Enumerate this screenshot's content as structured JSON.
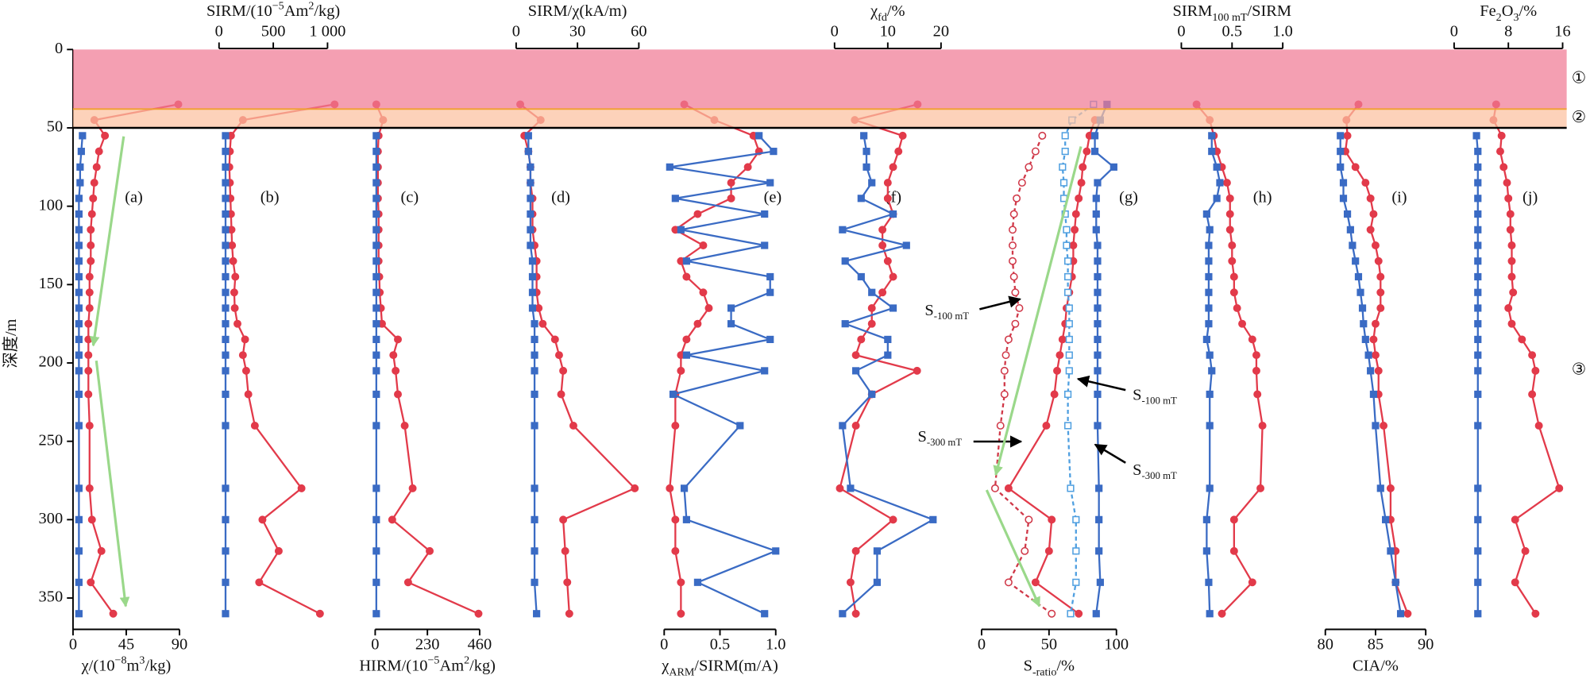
{
  "depth_axis": {
    "label": "深度/m",
    "ylim": [
      0,
      370
    ],
    "yticks": [
      0,
      50,
      100,
      150,
      200,
      250,
      300,
      350
    ],
    "depths": [
      35,
      45,
      55,
      65,
      75,
      85,
      95,
      105,
      115,
      125,
      135,
      145,
      155,
      165,
      175,
      185,
      195,
      205,
      220,
      240,
      280,
      300,
      320,
      340,
      360
    ]
  },
  "zones": [
    {
      "label": "①",
      "range": [
        0,
        38
      ],
      "color": "#f07a94"
    },
    {
      "label": "②",
      "range": [
        38,
        50
      ],
      "color": "#fcc0a0"
    },
    {
      "label": "③",
      "range": [
        50,
        360
      ],
      "color": "none"
    }
  ],
  "chart_data": [
    {
      "type": "line",
      "panel": "(a)",
      "axis": "bottom",
      "xlabel": [
        {
          "text": "χ/(10"
        },
        {
          "text": "−8",
          "style": "sup"
        },
        {
          "text": "m"
        },
        {
          "text": "3",
          "style": "sup"
        },
        {
          "text": "/kg)"
        }
      ],
      "xlim": [
        0,
        90
      ],
      "xticks": [
        0,
        45,
        90
      ],
      "series": [
        {
          "color": "#e23a4a",
          "marker": "circle",
          "values": [
            89,
            18,
            27,
            22,
            20,
            18,
            17,
            16,
            15,
            15,
            15,
            14,
            14,
            14,
            13,
            13,
            13,
            13,
            13,
            14,
            14,
            16,
            24,
            15,
            34
          ]
        },
        {
          "color": "#3a6bc4",
          "marker": "square",
          "values": [
            null,
            null,
            8,
            7,
            6,
            6,
            5,
            5,
            5,
            5,
            5,
            5,
            5,
            5,
            5,
            5,
            5,
            5,
            5,
            5,
            5,
            5,
            5,
            5,
            5
          ]
        }
      ]
    },
    {
      "type": "line",
      "panel": "(b)",
      "axis": "top",
      "xlabel": [
        {
          "text": "SIRM/(10"
        },
        {
          "text": "−5",
          "style": "sup"
        },
        {
          "text": "Am"
        },
        {
          "text": "2",
          "style": "sup"
        },
        {
          "text": "/kg)"
        }
      ],
      "xlim": [
        0,
        1000
      ],
      "xticks": [
        0,
        500,
        {
          "value": 1000,
          "label": "1 000"
        }
      ],
      "series": [
        {
          "color": "#e23a4a",
          "marker": "circle",
          "values": [
            1065,
            220,
            110,
            100,
            95,
            100,
            105,
            110,
            115,
            120,
            130,
            150,
            140,
            145,
            170,
            240,
            220,
            250,
            270,
            330,
            760,
            400,
            550,
            370,
            930
          ]
        },
        {
          "color": "#3a6bc4",
          "marker": "square",
          "values": [
            null,
            null,
            60,
            60,
            60,
            60,
            60,
            60,
            60,
            60,
            60,
            60,
            60,
            60,
            60,
            60,
            60,
            60,
            60,
            60,
            60,
            60,
            60,
            60,
            60
          ]
        }
      ]
    },
    {
      "type": "line",
      "panel": "(c)",
      "axis": "bottom",
      "xlabel": [
        {
          "text": "HIRM/(10"
        },
        {
          "text": "−5",
          "style": "sup"
        },
        {
          "text": "Am"
        },
        {
          "text": "2",
          "style": "sup"
        },
        {
          "text": "/kg)"
        }
      ],
      "xlim": [
        0,
        460
      ],
      "xticks": [
        0,
        230,
        460
      ],
      "series": [
        {
          "color": "#e23a4a",
          "marker": "circle",
          "values": [
            5,
            35,
            15,
            12,
            12,
            12,
            12,
            15,
            15,
            15,
            15,
            18,
            20,
            25,
            30,
            100,
            80,
            90,
            100,
            130,
            165,
            75,
            240,
            145,
            455
          ]
        },
        {
          "color": "#3a6bc4",
          "marker": "square",
          "values": [
            null,
            null,
            5,
            5,
            5,
            5,
            5,
            5,
            5,
            5,
            5,
            5,
            5,
            5,
            5,
            5,
            5,
            5,
            5,
            5,
            5,
            5,
            5,
            5,
            5
          ]
        }
      ]
    },
    {
      "type": "line",
      "panel": "(d)",
      "axis": "top",
      "xlabel": [
        {
          "text": "SIRM/χ(kA/m)"
        }
      ],
      "xlim": [
        0,
        60
      ],
      "xticks": [
        0,
        30,
        60
      ],
      "series": [
        {
          "color": "#e23a4a",
          "marker": "circle",
          "values": [
            2,
            12,
            4,
            6,
            7,
            7,
            8,
            8,
            8,
            9,
            10,
            10,
            10,
            11,
            13,
            19,
            21,
            23,
            22,
            28,
            58,
            23,
            24,
            25,
            26
          ]
        },
        {
          "color": "#3a6bc4",
          "marker": "square",
          "values": [
            null,
            null,
            6,
            6,
            7,
            7,
            7,
            7,
            7,
            7,
            8,
            8,
            8,
            8,
            9,
            9,
            9,
            9,
            9,
            9,
            9,
            9,
            9,
            9,
            10
          ]
        }
      ]
    },
    {
      "type": "line",
      "panel": "(e)",
      "axis": "bottom",
      "xlabel": [
        {
          "text": "χ"
        },
        {
          "text": "ARM",
          "style": "sub"
        },
        {
          "text": "/SIRM(m/A)"
        }
      ],
      "xlim": [
        0,
        1
      ],
      "xticks": [
        0,
        0.5,
        {
          "value": 1,
          "label": "1.0"
        }
      ],
      "series": [
        {
          "color": "#e23a4a",
          "marker": "circle",
          "values": [
            0.18,
            0.45,
            0.8,
            0.85,
            0.75,
            0.6,
            0.6,
            0.3,
            0.1,
            0.35,
            0.15,
            0.2,
            0.35,
            0.4,
            0.3,
            0.2,
            0.15,
            0.15,
            0.1,
            0.1,
            0.05,
            0.1,
            0.1,
            0.15,
            0.15
          ]
        },
        {
          "color": "#3a6bc4",
          "marker": "square",
          "values": [
            null,
            null,
            0.85,
            0.98,
            0.05,
            0.95,
            0.1,
            0.9,
            0.15,
            0.9,
            0.2,
            0.95,
            0.95,
            0.6,
            0.6,
            0.95,
            0.2,
            0.9,
            0.08,
            0.68,
            0.18,
            0.2,
            1.0,
            0.3,
            0.9
          ]
        }
      ]
    },
    {
      "type": "line",
      "panel": "(f)",
      "axis": "top",
      "xlabel": [
        {
          "text": "χ"
        },
        {
          "text": "fd",
          "style": "sub"
        },
        {
          "text": "/%"
        }
      ],
      "xlim": [
        0,
        20
      ],
      "xticks": [
        0,
        10,
        20
      ],
      "series": [
        {
          "color": "#e23a4a",
          "marker": "circle",
          "values": [
            15.6,
            3.8,
            12.8,
            12,
            11,
            10,
            10,
            11,
            9,
            9,
            10,
            11,
            9,
            7,
            7,
            5,
            4,
            15.5,
            7,
            4,
            1,
            11,
            4,
            3,
            4
          ]
        },
        {
          "color": "#3a6bc4",
          "marker": "square",
          "values": [
            null,
            null,
            5.5,
            6,
            6,
            7,
            5,
            11,
            1.5,
            13.5,
            2,
            5,
            7,
            11,
            2,
            10,
            10,
            4,
            7,
            1.5,
            3,
            18.5,
            8,
            8,
            1.5
          ]
        }
      ]
    },
    {
      "type": "line",
      "panel": "(g)",
      "axis": "bottom",
      "xlabel": [
        {
          "text": "S"
        },
        {
          "text": "-ratio",
          "style": "sub"
        },
        {
          "text": "/%"
        }
      ],
      "xlim": [
        0,
        100
      ],
      "xticks": [
        0,
        50,
        100
      ],
      "series": [
        {
          "color": "#e23a4a",
          "marker": "circle",
          "values": [
            null,
            84,
            80,
            78,
            75,
            74,
            72,
            70,
            69,
            68,
            68,
            67,
            65,
            63,
            62,
            60,
            58,
            56,
            54,
            48,
            20,
            52,
            50,
            40,
            72
          ]
        },
        {
          "color": "#d03848",
          "marker": "circle-open",
          "dash": true,
          "values": [
            null,
            null,
            45,
            40,
            35,
            30,
            26,
            24,
            23,
            23,
            23,
            24,
            25,
            28,
            25,
            20,
            18,
            17,
            17,
            14,
            10,
            35,
            32,
            20,
            52
          ]
        },
        {
          "color": "#4f9fe0",
          "marker": "square-open",
          "dash": true,
          "values": [
            83,
            67,
            62,
            62,
            60,
            61,
            61,
            62,
            63,
            63,
            64,
            64,
            64,
            65,
            65,
            65,
            65,
            65,
            64,
            64,
            66,
            70,
            70,
            70,
            66
          ]
        },
        {
          "color": "#3a6bc4",
          "marker": "square",
          "values": [
            93,
            88,
            84,
            84,
            98,
            86,
            85,
            85,
            85,
            86,
            86,
            86,
            86,
            86,
            86,
            86,
            86,
            86,
            86,
            86,
            87,
            87,
            87,
            88,
            85
          ]
        }
      ],
      "annotations": [
        {
          "main": "S",
          "sub": "-100 mT"
        },
        {
          "main": "S",
          "sub": "-100 mT"
        },
        {
          "main": "S",
          "sub": "-300 mT"
        },
        {
          "main": "S",
          "sub": "-300 mT"
        }
      ]
    },
    {
      "type": "line",
      "panel": "(h)",
      "axis": "top",
      "xlabel": [
        {
          "text": "SIRM"
        },
        {
          "text": "100 mT",
          "style": "sub"
        },
        {
          "text": "/SIRM"
        }
      ],
      "xlim": [
        0,
        1
      ],
      "xticks": [
        0,
        0.5,
        {
          "value": 1,
          "label": "1.0"
        }
      ],
      "series": [
        {
          "color": "#e23a4a",
          "marker": "circle",
          "values": [
            0.15,
            0.28,
            0.32,
            0.35,
            0.4,
            0.45,
            0.48,
            0.48,
            0.48,
            0.5,
            0.5,
            0.52,
            0.52,
            0.55,
            0.6,
            0.7,
            0.74,
            0.74,
            0.75,
            0.8,
            0.78,
            0.52,
            0.52,
            0.7,
            0.4
          ]
        },
        {
          "color": "#3a6bc4",
          "marker": "square",
          "values": [
            null,
            null,
            0.3,
            0.3,
            0.35,
            0.38,
            0.35,
            0.25,
            0.28,
            0.27,
            0.27,
            0.27,
            0.27,
            0.27,
            0.27,
            0.25,
            0.28,
            0.3,
            0.28,
            0.28,
            0.28,
            0.25,
            0.25,
            0.27,
            0.28
          ]
        }
      ]
    },
    {
      "type": "line",
      "panel": "(i)",
      "axis": "bottom",
      "xlabel": [
        {
          "text": "CIA/%"
        }
      ],
      "xlim": [
        80,
        90
      ],
      "xticks": [
        80,
        85,
        90
      ],
      "series": [
        {
          "color": "#e23a4a",
          "marker": "circle",
          "values": [
            83.3,
            82.1,
            82.2,
            82,
            83,
            84,
            84.5,
            84.8,
            84.5,
            85,
            85.3,
            85.5,
            85.5,
            85.5,
            85,
            84.8,
            85,
            85.3,
            85.3,
            85.8,
            86.5,
            86.5,
            87,
            87,
            88.2
          ]
        },
        {
          "color": "#3a6bc4",
          "marker": "square",
          "values": [
            null,
            null,
            81.5,
            81.5,
            81.5,
            81.8,
            81.8,
            82.2,
            82.5,
            82.7,
            83,
            83.3,
            83.5,
            83.7,
            83.8,
            84,
            84.3,
            84.5,
            84.8,
            85,
            85.5,
            86,
            86.5,
            87,
            87.5
          ]
        }
      ]
    },
    {
      "type": "line",
      "panel": "(j)",
      "axis": "top",
      "xlabel": [
        {
          "text": "Fe"
        },
        {
          "text": "2",
          "style": "sub"
        },
        {
          "text": "O"
        },
        {
          "text": "3",
          "style": "sub"
        },
        {
          "text": "/%"
        }
      ],
      "xlim": [
        0,
        16
      ],
      "xticks": [
        0,
        8,
        16
      ],
      "series": [
        {
          "color": "#e23a4a",
          "marker": "circle",
          "values": [
            6.2,
            5.8,
            7,
            6.8,
            7.3,
            7.8,
            8,
            8.3,
            8.3,
            8.5,
            8.5,
            8.5,
            8.7,
            8,
            8.5,
            10,
            11.5,
            12,
            11.5,
            12.5,
            15.5,
            9,
            10.5,
            9,
            12
          ]
        },
        {
          "color": "#3a6bc4",
          "marker": "square",
          "values": [
            null,
            null,
            3.3,
            3.5,
            3.5,
            3.5,
            3.5,
            3.5,
            3.5,
            3.5,
            3.5,
            3.5,
            3.5,
            3.5,
            3.5,
            3.5,
            3.5,
            3.5,
            3.5,
            3.5,
            3.5,
            3.5,
            3.5,
            3.5,
            3.5
          ]
        }
      ]
    }
  ]
}
